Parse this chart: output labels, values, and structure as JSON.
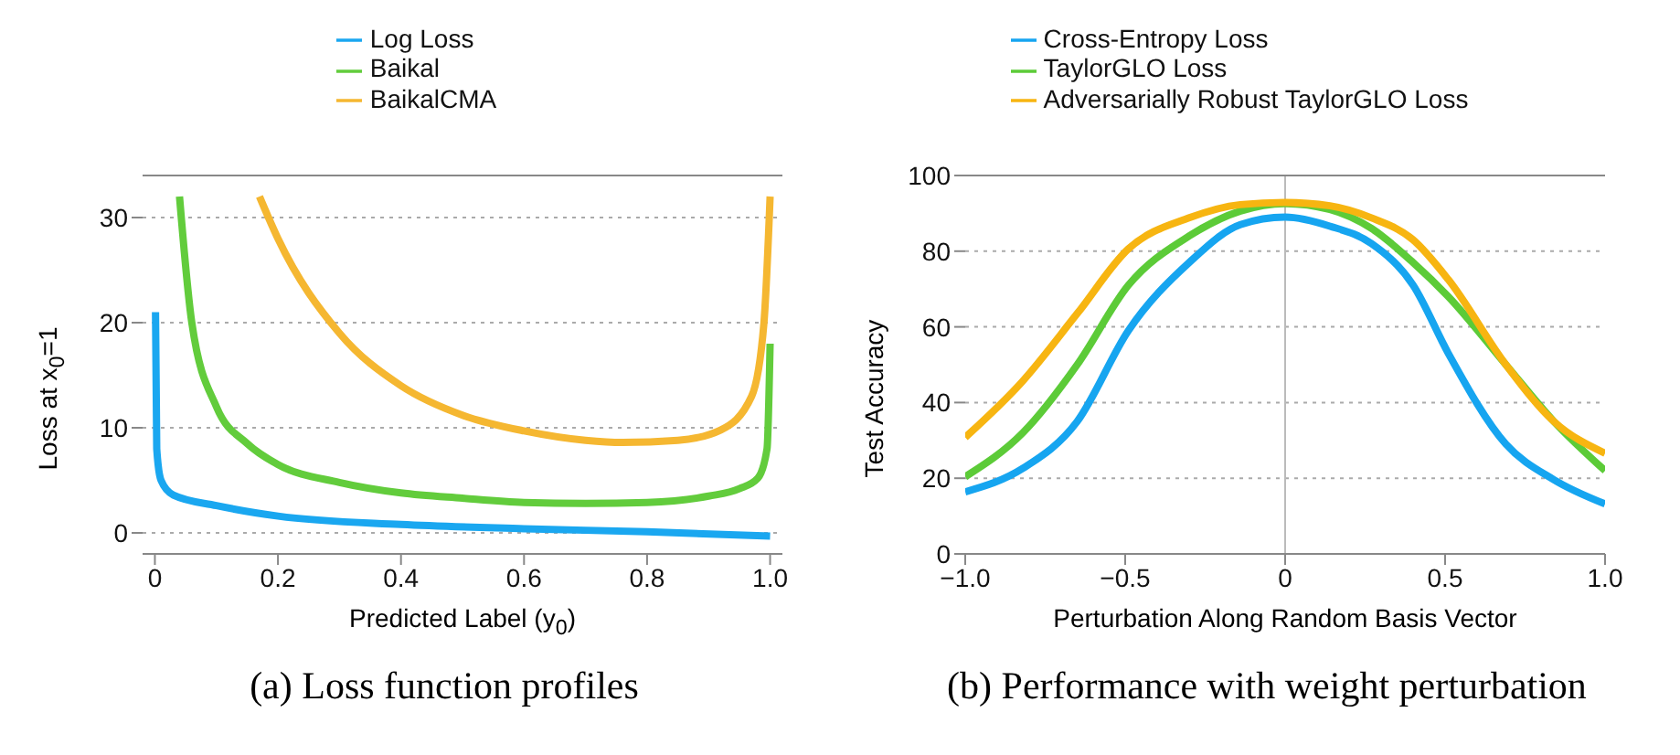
{
  "chart_data": [
    {
      "type": "line",
      "title": "(a) Loss function profiles",
      "xlabel": "Predicted Label (y$_{0}$)",
      "ylabel": "Loss at x$_{0}$=1",
      "xlim": [
        -0.02,
        1.02
      ],
      "xticks": [
        0,
        0.2,
        0.4,
        0.6,
        0.8,
        {
          "value": 1,
          "label": "1.0"
        }
      ],
      "ylim": [
        -2,
        34
      ],
      "yticks": [
        0,
        10,
        20,
        30
      ],
      "grid": "y",
      "legend": "top",
      "line_style": "solid",
      "marker": "none",
      "series": [
        {
          "name": "Log Loss",
          "color": "#1aa7f0",
          "x": [
            0.001,
            0.003,
            0.01,
            0.03,
            0.1,
            0.2,
            0.4,
            0.6,
            0.8,
            1.0
          ],
          "values": [
            21,
            8,
            5,
            3.6,
            2.6,
            1.6,
            0.8,
            0.4,
            0.1,
            -0.3
          ]
        },
        {
          "name": "Baikal",
          "color": "#62cc3c",
          "x": [
            0.04,
            0.06,
            0.1,
            0.15,
            0.2,
            0.3,
            0.4,
            0.5,
            0.6,
            0.7,
            0.8,
            0.9,
            0.95,
            0.98,
            0.995,
            1.0
          ],
          "values": [
            32,
            20,
            12,
            8.5,
            6.5,
            4.8,
            3.8,
            3.3,
            2.9,
            2.8,
            2.9,
            3.5,
            4.2,
            5.2,
            8,
            18
          ]
        },
        {
          "name": "BaikalCMA",
          "color": "#f5b731",
          "x": [
            0.17,
            0.2,
            0.3,
            0.4,
            0.5,
            0.6,
            0.7,
            0.76,
            0.85,
            0.92,
            0.97,
            0.99,
            1.0
          ],
          "values": [
            32,
            28,
            19,
            14,
            11.2,
            9.7,
            8.8,
            8.6,
            8.8,
            9.8,
            13,
            20,
            32
          ]
        }
      ]
    },
    {
      "type": "line",
      "title": "(b) Performance with weight perturbation",
      "xlabel": "Perturbation Along Random Basis Vector",
      "ylabel": "Test Accuracy",
      "xlim": [
        -1,
        1
      ],
      "xticks": [
        {
          "value": -1,
          "label": "−1.0"
        },
        {
          "value": -0.5,
          "label": "−0.5"
        },
        0,
        0.5,
        {
          "value": 1,
          "label": "1.0"
        }
      ],
      "ylim": [
        0,
        100
      ],
      "yticks": [
        0,
        20,
        40,
        60,
        80,
        100
      ],
      "grid": "y",
      "legend": "top",
      "line_style": "solid",
      "marker": "none",
      "ref_lines": [
        {
          "axis": "x",
          "value": 0,
          "color": "#bbbbbb"
        }
      ],
      "x": [
        -1,
        -0.82,
        -0.65,
        -0.49,
        -0.3,
        -0.14,
        0,
        0.14,
        0.27,
        0.4,
        0.51,
        0.69,
        0.84,
        1
      ],
      "series": [
        {
          "name": "Cross-Entropy Loss",
          "color": "#16a5f0",
          "values": [
            16.4,
            22.6,
            35,
            59,
            77,
            87,
            89,
            86.6,
            82,
            71,
            53,
            29,
            19.6,
            13.2
          ]
        },
        {
          "name": "TaylorGLO Loss",
          "color": "#5ccb38",
          "values": [
            20.4,
            32,
            50,
            71,
            84,
            90.6,
            92.6,
            91,
            86,
            77,
            68,
            50,
            35,
            22
          ]
        },
        {
          "name": "Adversarially Robust TaylorGLO Loss",
          "color": "#f7b511",
          "values": [
            30.8,
            45.7,
            63.5,
            80.6,
            88.8,
            92.3,
            92.9,
            92,
            88.8,
            83,
            72.5,
            50,
            35,
            26.6
          ]
        }
      ]
    }
  ]
}
